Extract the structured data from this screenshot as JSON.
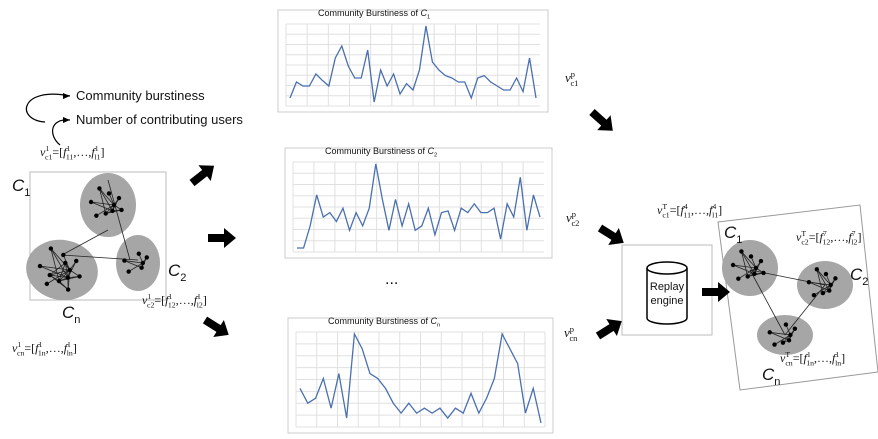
{
  "legend": [
    "Community burstiness",
    "Number of contributing users"
  ],
  "left": {
    "vector_c1": [
      {
        "text": "v",
        "sub": "c1",
        "sup": "1"
      },
      {
        "text": "=["
      },
      {
        "text": "f",
        "sub": "11",
        "sup": "1"
      },
      {
        "text": ",…,"
      },
      {
        "text": "f",
        "sub": "l1",
        "sup": "1"
      },
      {
        "text": "]"
      }
    ],
    "label_c1": [
      {
        "text": "C",
        "sub": "1"
      }
    ],
    "label_c2": [
      {
        "text": "C",
        "sub": "2"
      }
    ],
    "label_cn": [
      {
        "text": "C",
        "sub": "n"
      }
    ],
    "vector_c2": [
      {
        "text": "v",
        "sub": "c2",
        "sup": "1"
      },
      {
        "text": "=["
      },
      {
        "text": "f",
        "sub": "12",
        "sup": "1"
      },
      {
        "text": ",…,"
      },
      {
        "text": "f",
        "sub": "l2",
        "sup": "1"
      },
      {
        "text": "]"
      }
    ],
    "vector_cn": [
      {
        "text": "v",
        "sub": "cn",
        "sup": "1"
      },
      {
        "text": "=["
      },
      {
        "text": "f",
        "sub": "1n",
        "sup": "1"
      },
      {
        "text": ",…,"
      },
      {
        "text": "f",
        "sub": "ln",
        "sup": "1"
      },
      {
        "text": "]"
      }
    ]
  },
  "charts": [
    {
      "title": [
        {
          "text": "Community Burstiness of "
        },
        {
          "text": "C",
          "sub": "1"
        }
      ],
      "values": [
        10,
        30,
        25,
        25,
        40,
        32,
        25,
        60,
        75,
        50,
        35,
        35,
        70,
        5,
        45,
        25,
        40,
        15,
        28,
        20,
        45,
        100,
        55,
        45,
        38,
        35,
        30,
        30,
        10,
        35,
        38,
        30,
        25,
        20,
        20,
        35,
        18,
        60,
        10
      ]
    },
    {
      "title": [
        {
          "text": "Community Burstiness of "
        },
        {
          "text": "C",
          "sub": "2"
        }
      ],
      "values": [
        0,
        0,
        25,
        60,
        35,
        40,
        30,
        45,
        20,
        40,
        25,
        45,
        95,
        55,
        20,
        55,
        25,
        50,
        20,
        25,
        45,
        15,
        40,
        42,
        20,
        45,
        40,
        50,
        40,
        40,
        45,
        10,
        50,
        35,
        80,
        20,
        60,
        35
      ]
    },
    {
      "title": [
        {
          "text": "Community Burstiness of "
        },
        {
          "text": "C",
          "sub": "n"
        }
      ],
      "values": [
        45,
        30,
        35,
        55,
        25,
        60,
        15,
        100,
        85,
        60,
        55,
        45,
        30,
        20,
        30,
        20,
        25,
        20,
        25,
        15,
        25,
        20,
        40,
        20,
        35,
        55,
        100,
        85,
        70,
        20,
        45,
        10
      ]
    }
  ],
  "ellipsis": "...",
  "pattern_c1": [
    {
      "text": "v",
      "sub": "c1",
      "sup": "p"
    }
  ],
  "pattern_c2": [
    {
      "text": "v",
      "sub": "c2",
      "sup": "p"
    }
  ],
  "pattern_cn": [
    {
      "text": "v",
      "sub": "cn",
      "sup": "p"
    }
  ],
  "replay_engine": [
    "Replay",
    "engine"
  ],
  "right": {
    "vector_c1": [
      {
        "text": "v",
        "sub": "c1",
        "sup": "T"
      },
      {
        "text": "=["
      },
      {
        "text": "f",
        "sub": "11",
        "sup": "4"
      },
      {
        "text": ",…,"
      },
      {
        "text": "f",
        "sub": "l1",
        "sup": "4"
      },
      {
        "text": "]"
      }
    ],
    "label_c1": [
      {
        "text": "C",
        "sub": "1"
      }
    ],
    "vector_c2": [
      {
        "text": "v",
        "sub": "c2",
        "sup": "T"
      },
      {
        "text": "=["
      },
      {
        "text": "f",
        "sub": "12",
        "sup": "7"
      },
      {
        "text": ",…,"
      },
      {
        "text": "f",
        "sub": "l2",
        "sup": "7"
      },
      {
        "text": "]"
      }
    ],
    "label_c2": [
      {
        "text": "C",
        "sub": "2"
      }
    ],
    "vector_cn": [
      {
        "text": "v",
        "sub": "cn",
        "sup": "T"
      },
      {
        "text": "=["
      },
      {
        "text": "f",
        "sub": "1n",
        "sup": "1"
      },
      {
        "text": ",…,"
      },
      {
        "text": "f",
        "sub": "ln",
        "sup": "1"
      },
      {
        "text": "]"
      }
    ],
    "label_cn": [
      {
        "text": "C",
        "sub": "n"
      }
    ]
  }
}
